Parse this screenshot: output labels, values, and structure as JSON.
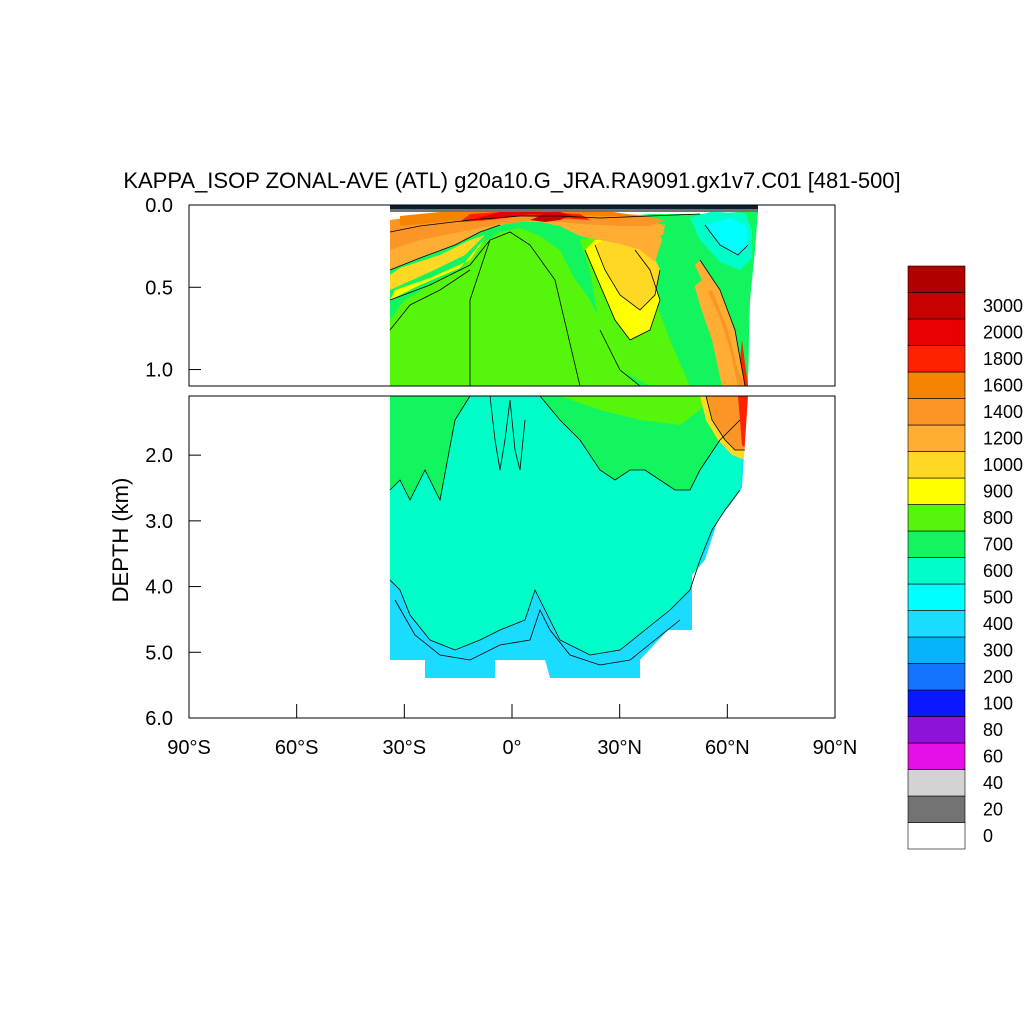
{
  "chart_data": {
    "type": "contour",
    "title": "KAPPA_ISOP ZONAL-AVE (ATL) g20a10.G_JRA.RA9091.gx1v7.C01 [481-500]",
    "ylabel": "DEPTH (km)",
    "xlim": [
      -90,
      90
    ],
    "ylim_upper_panel": [
      0.0,
      1.1
    ],
    "ylim_lower_panel": [
      1.1,
      6.0
    ],
    "x_ticks": [
      {
        "value": -90,
        "label": "90°S"
      },
      {
        "value": -60,
        "label": "60°S"
      },
      {
        "value": -30,
        "label": "30°S"
      },
      {
        "value": 0,
        "label": "0°"
      },
      {
        "value": 30,
        "label": "30°N"
      },
      {
        "value": 60,
        "label": "60°N"
      },
      {
        "value": 90,
        "label": "90°N"
      }
    ],
    "y_ticks_upper": [
      {
        "value": 0.0,
        "label": "0.0"
      },
      {
        "value": 0.5,
        "label": "0.5"
      },
      {
        "value": 1.0,
        "label": "1.0"
      }
    ],
    "y_ticks_lower": [
      {
        "value": 2.0,
        "label": "2.0"
      },
      {
        "value": 3.0,
        "label": "3.0"
      },
      {
        "value": 4.0,
        "label": "4.0"
      },
      {
        "value": 5.0,
        "label": "5.0"
      },
      {
        "value": 6.0,
        "label": "6.0"
      }
    ],
    "data_extent_lat": [
      -34,
      68
    ],
    "colorbar": [
      {
        "label": "0",
        "color": "#ffffff"
      },
      {
        "label": "20",
        "color": "#737373"
      },
      {
        "label": "40",
        "color": "#d3d3d3"
      },
      {
        "label": "60",
        "color": "#e60fe6"
      },
      {
        "label": "80",
        "color": "#8f12db"
      },
      {
        "label": "100",
        "color": "#0a17ff"
      },
      {
        "label": "200",
        "color": "#1474ff"
      },
      {
        "label": "300",
        "color": "#05b4fa"
      },
      {
        "label": "400",
        "color": "#1adcff"
      },
      {
        "label": "500",
        "color": "#00ffff"
      },
      {
        "label": "600",
        "color": "#00ffc8"
      },
      {
        "label": "700",
        "color": "#12f55e"
      },
      {
        "label": "800",
        "color": "#55f50c"
      },
      {
        "label": "900",
        "color": "#ffff00"
      },
      {
        "label": "1000",
        "color": "#ffd824"
      },
      {
        "label": "1200",
        "color": "#ffae33"
      },
      {
        "label": "1400",
        "color": "#fa9526"
      },
      {
        "label": "1600",
        "color": "#f78400"
      },
      {
        "label": "1800",
        "color": "#ff2200"
      },
      {
        "label": "2000",
        "color": "#e60000"
      },
      {
        "label": "3000",
        "color": "#c90000"
      },
      {
        "label": "",
        "color": "#b00000"
      }
    ],
    "grid": false
  }
}
